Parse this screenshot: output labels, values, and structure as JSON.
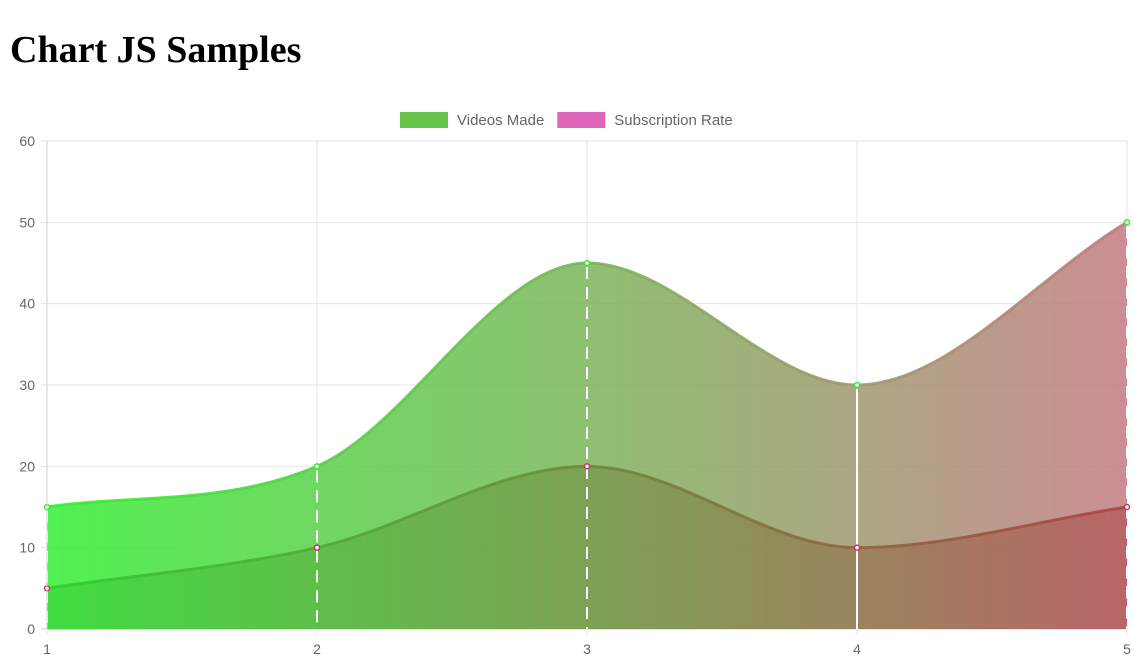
{
  "page": {
    "title": "Chart JS Samples"
  },
  "chart_data": {
    "type": "area",
    "x": [
      1,
      2,
      3,
      4,
      5
    ],
    "xlim": [
      1,
      5
    ],
    "ylim": [
      0,
      60
    ],
    "yticks": [
      0,
      10,
      20,
      30,
      40,
      50,
      60
    ],
    "grid": true,
    "legend_position": "top-center",
    "series": [
      {
        "name": "Videos Made",
        "values": [
          15,
          20,
          45,
          30,
          50
        ],
        "legend_color": "#66c44b",
        "gradient": [
          "#33ee33",
          "#c27a80"
        ],
        "point_color": "#33ee33"
      },
      {
        "name": "Subscription Rate",
        "values": [
          5,
          10,
          20,
          10,
          15
        ],
        "legend_color": "#dd66bb",
        "gradient": [
          "#33cc33",
          "#aa4444"
        ],
        "point_color": "#cc3366"
      }
    ]
  }
}
